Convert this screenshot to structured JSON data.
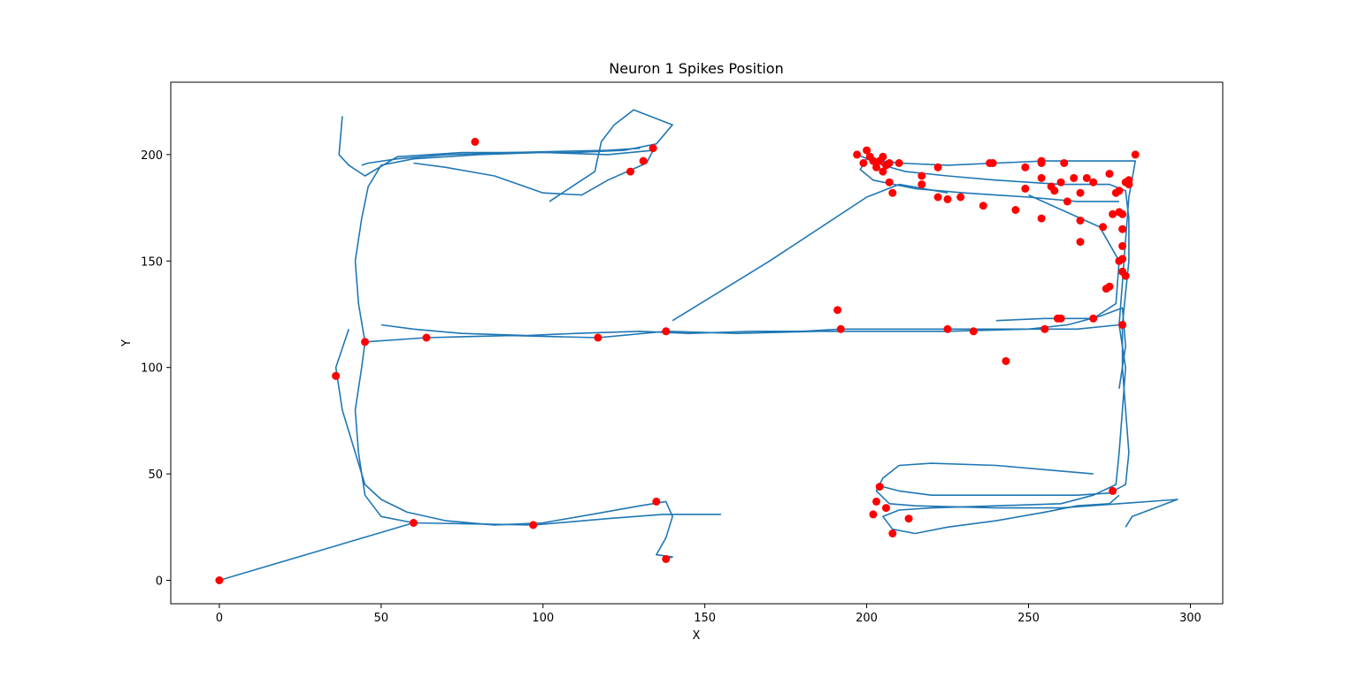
{
  "chart_data": {
    "type": "scatter",
    "title": "Neuron 1 Spikes Position",
    "xlabel": "X",
    "ylabel": "Y",
    "xlim": [
      -15,
      310
    ],
    "ylim": [
      -11,
      234
    ],
    "xticks": [
      0,
      50,
      100,
      150,
      200,
      250,
      300
    ],
    "yticks": [
      0,
      50,
      100,
      150,
      200
    ],
    "grid": false,
    "trajectory": {
      "color": "#1f77b4",
      "polylines": [
        [
          [
            0,
            0
          ],
          [
            60,
            27
          ],
          [
            97,
            26
          ],
          [
            120,
            29
          ],
          [
            137,
            31
          ],
          [
            155,
            31
          ]
        ],
        [
          [
            60,
            27
          ],
          [
            50,
            30
          ],
          [
            45,
            40
          ],
          [
            43,
            60
          ],
          [
            42,
            80
          ],
          [
            44,
            100
          ],
          [
            45,
            112
          ],
          [
            43,
            130
          ],
          [
            42,
            150
          ],
          [
            44,
            170
          ],
          [
            46,
            185
          ],
          [
            50,
            195
          ],
          [
            60,
            198
          ],
          [
            80,
            200
          ],
          [
            100,
            201
          ],
          [
            120,
            200
          ],
          [
            134,
            202
          ],
          [
            132,
            196
          ],
          [
            126,
            192
          ],
          [
            120,
            188
          ],
          [
            112,
            181
          ],
          [
            100,
            182
          ],
          [
            85,
            190
          ],
          [
            70,
            194
          ],
          [
            60,
            196
          ]
        ],
        [
          [
            45,
            112
          ],
          [
            64,
            114
          ],
          [
            90,
            115
          ],
          [
            117,
            114
          ],
          [
            138,
            117
          ],
          [
            160,
            116
          ],
          [
            185,
            117
          ],
          [
            200,
            117
          ],
          [
            225,
            117
          ],
          [
            250,
            118
          ],
          [
            265,
            118
          ],
          [
            278,
            120
          ],
          [
            280,
            100
          ],
          [
            279,
            80
          ],
          [
            278,
            60
          ],
          [
            277,
            45
          ],
          [
            270,
            40
          ],
          [
            260,
            36
          ],
          [
            240,
            35
          ],
          [
            220,
            34
          ],
          [
            210,
            33
          ],
          [
            205,
            30
          ],
          [
            208,
            24
          ],
          [
            215,
            22
          ],
          [
            225,
            25
          ],
          [
            240,
            28
          ],
          [
            255,
            32
          ],
          [
            265,
            35
          ],
          [
            275,
            36
          ],
          [
            278,
            40
          ]
        ],
        [
          [
            278,
            120
          ],
          [
            279,
            140
          ],
          [
            280,
            160
          ],
          [
            281,
            180
          ],
          [
            283,
            197
          ],
          [
            270,
            197
          ],
          [
            255,
            197
          ],
          [
            240,
            196
          ],
          [
            225,
            195
          ],
          [
            210,
            196
          ],
          [
            200,
            198
          ],
          [
            198,
            193
          ],
          [
            202,
            188
          ],
          [
            215,
            184
          ],
          [
            230,
            182
          ],
          [
            250,
            180
          ],
          [
            265,
            178
          ],
          [
            278,
            178
          ]
        ],
        [
          [
            140,
            122
          ],
          [
            170,
            150
          ],
          [
            200,
            180
          ],
          [
            210,
            186
          ],
          [
            225,
            182
          ]
        ],
        [
          [
            250,
            181
          ],
          [
            272,
            166
          ],
          [
            278,
            150
          ],
          [
            277,
            130
          ],
          [
            270,
            123
          ],
          [
            255,
            123
          ],
          [
            240,
            122
          ]
        ],
        [
          [
            270,
            50
          ],
          [
            255,
            52
          ],
          [
            240,
            54
          ],
          [
            220,
            55
          ],
          [
            210,
            54
          ],
          [
            205,
            48
          ],
          [
            203,
            42
          ],
          [
            207,
            36
          ],
          [
            215,
            35
          ],
          [
            240,
            34
          ],
          [
            260,
            34
          ],
          [
            278,
            36
          ],
          [
            296,
            38
          ],
          [
            282,
            30
          ],
          [
            280,
            25
          ]
        ],
        [
          [
            40,
            118
          ],
          [
            36,
            100
          ],
          [
            38,
            80
          ],
          [
            42,
            60
          ],
          [
            45,
            45
          ],
          [
            50,
            38
          ],
          [
            58,
            32
          ],
          [
            70,
            28
          ],
          [
            85,
            26
          ],
          [
            100,
            27
          ],
          [
            115,
            31
          ],
          [
            130,
            35
          ],
          [
            138,
            37
          ],
          [
            140,
            30
          ],
          [
            138,
            20
          ],
          [
            135,
            12
          ],
          [
            140,
            11
          ],
          [
            138,
            10
          ]
        ],
        [
          [
            50,
            120
          ],
          [
            60,
            118
          ],
          [
            75,
            116
          ],
          [
            95,
            115
          ],
          [
            110,
            116
          ],
          [
            130,
            117
          ],
          [
            145,
            116
          ],
          [
            165,
            117
          ],
          [
            180,
            117
          ],
          [
            192,
            118
          ],
          [
            210,
            118
          ],
          [
            230,
            118
          ],
          [
            250,
            118
          ],
          [
            262,
            120
          ],
          [
            272,
            124
          ],
          [
            279,
            128
          ],
          [
            280,
            110
          ],
          [
            278,
            90
          ]
        ],
        [
          [
            38,
            218
          ],
          [
            37,
            200
          ],
          [
            40,
            195
          ],
          [
            45,
            190
          ],
          [
            55,
            199
          ],
          [
            75,
            201
          ],
          [
            95,
            201
          ],
          [
            110,
            201
          ],
          [
            125,
            202
          ],
          [
            135,
            205
          ],
          [
            140,
            214
          ],
          [
            128,
            221
          ],
          [
            122,
            214
          ],
          [
            118,
            206
          ],
          [
            116,
            192
          ],
          [
            110,
            186
          ],
          [
            102,
            178
          ]
        ],
        [
          [
            44,
            195
          ],
          [
            46,
            196
          ],
          [
            55,
            198
          ],
          [
            70,
            200
          ],
          [
            90,
            201
          ],
          [
            120,
            202
          ],
          [
            130,
            203
          ]
        ],
        [
          [
            197,
            200
          ],
          [
            205,
            195
          ],
          [
            212,
            192
          ],
          [
            225,
            190
          ],
          [
            240,
            188
          ],
          [
            260,
            186
          ],
          [
            275,
            186
          ],
          [
            280,
            183
          ],
          [
            281,
            170
          ],
          [
            281,
            150
          ],
          [
            280,
            135
          ],
          [
            279,
            120
          ],
          [
            279,
            100
          ],
          [
            280,
            80
          ],
          [
            281,
            60
          ],
          [
            280,
            45
          ],
          [
            275,
            41
          ],
          [
            265,
            40
          ],
          [
            240,
            40
          ],
          [
            220,
            40
          ],
          [
            210,
            42
          ],
          [
            205,
            44
          ]
        ]
      ]
    },
    "spikes": {
      "color": "#ff0000",
      "points": [
        [
          0,
          0
        ],
        [
          36,
          96
        ],
        [
          45,
          112
        ],
        [
          64,
          114
        ],
        [
          60,
          27
        ],
        [
          97,
          26
        ],
        [
          79,
          206
        ],
        [
          117,
          114
        ],
        [
          127,
          192
        ],
        [
          131,
          197
        ],
        [
          134,
          203
        ],
        [
          138,
          117
        ],
        [
          135,
          37
        ],
        [
          138,
          10
        ],
        [
          191,
          127
        ],
        [
          192,
          118
        ],
        [
          197,
          200
        ],
        [
          199,
          196
        ],
        [
          200,
          202
        ],
        [
          201,
          199
        ],
        [
          202,
          197
        ],
        [
          203,
          194
        ],
        [
          204,
          197
        ],
        [
          205,
          199
        ],
        [
          205,
          192
        ],
        [
          206,
          195
        ],
        [
          207,
          187
        ],
        [
          207,
          196
        ],
        [
          208,
          182
        ],
        [
          210,
          196
        ],
        [
          217,
          190
        ],
        [
          217,
          186
        ],
        [
          222,
          194
        ],
        [
          222,
          180
        ],
        [
          225,
          179
        ],
        [
          229,
          180
        ],
        [
          236,
          176
        ],
        [
          238,
          196
        ],
        [
          239,
          196
        ],
        [
          246,
          174
        ],
        [
          249,
          194
        ],
        [
          249,
          184
        ],
        [
          254,
          196
        ],
        [
          254,
          197
        ],
        [
          254,
          189
        ],
        [
          254,
          170
        ],
        [
          257,
          185
        ],
        [
          258,
          183
        ],
        [
          260,
          187
        ],
        [
          261,
          196
        ],
        [
          262,
          178
        ],
        [
          264,
          189
        ],
        [
          266,
          182
        ],
        [
          266,
          169
        ],
        [
          266,
          159
        ],
        [
          268,
          189
        ],
        [
          270,
          187
        ],
        [
          273,
          166
        ],
        [
          274,
          137
        ],
        [
          275,
          138
        ],
        [
          275,
          191
        ],
        [
          276,
          172
        ],
        [
          277,
          182
        ],
        [
          278,
          183
        ],
        [
          278,
          173
        ],
        [
          278,
          150
        ],
        [
          279,
          151
        ],
        [
          279,
          165
        ],
        [
          279,
          157
        ],
        [
          279,
          145
        ],
        [
          279,
          172
        ],
        [
          280,
          187
        ],
        [
          281,
          186
        ],
        [
          281,
          188
        ],
        [
          283,
          200
        ],
        [
          280,
          143
        ],
        [
          279,
          120
        ],
        [
          276,
          42
        ],
        [
          225,
          118
        ],
        [
          233,
          117
        ],
        [
          243,
          103
        ],
        [
          255,
          118
        ],
        [
          259,
          123
        ],
        [
          260,
          123
        ],
        [
          270,
          123
        ],
        [
          204,
          44
        ],
        [
          203,
          37
        ],
        [
          202,
          31
        ],
        [
          206,
          34
        ],
        [
          208,
          22
        ],
        [
          213,
          29
        ]
      ]
    }
  }
}
